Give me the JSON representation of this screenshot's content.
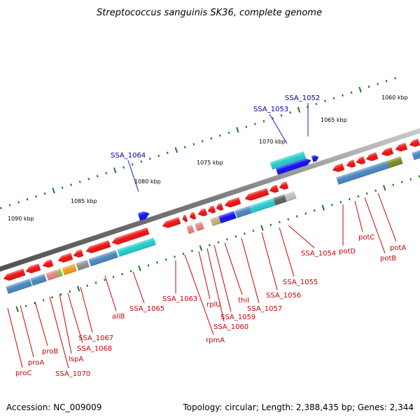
{
  "title": "Streptococcus sanguinis SK36, complete genome",
  "footer": {
    "accession": "Accession: NC_009009",
    "summary": "Topology: circular; Length: 2,388,435 bp; Genes: 2,344"
  },
  "colors": {
    "red": "#ee1111",
    "cyan": "#22cccc",
    "blue": "#1111ee",
    "steel": "#4a86c0",
    "gray": "#909090",
    "olive": "#7a8a22",
    "orange": "#f0a020",
    "green_tick": "#1a7a1a",
    "label_red": "#cc0000",
    "label_blue": "#000099",
    "backbone": "#808080"
  },
  "scale_labels": [
    "1060 kbp",
    "1065 kbp",
    "1070 kbp",
    "1075 kbp",
    "1080 kbp",
    "1085 kbp",
    "1090 kbp"
  ],
  "gene_labels_top": [
    "SSA_1052",
    "SSA_1053",
    "SSA_1064"
  ],
  "gene_labels_bottom": [
    "potA",
    "potB",
    "potC",
    "potD",
    "SSA_1054",
    "SSA_1055",
    "SSA_1056",
    "SSA_1057",
    "thiI",
    "SSA_1059",
    "rplU",
    "SSA_1060",
    "rpmA",
    "SSA_1063",
    "SSA_1065",
    "aliB",
    "SSA_1067",
    "SSA_1068",
    "lspA",
    "SSA_1070",
    "proB",
    "proA",
    "proC"
  ]
}
